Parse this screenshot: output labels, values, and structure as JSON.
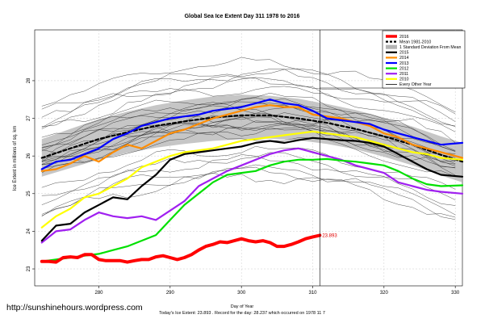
{
  "chart_data": {
    "type": "line",
    "title": "Global Sea Ice Extent Day 311 1978 to 2016",
    "xlabel": "Day of Year",
    "ylabel": "Ice Extent in millions of sq. km",
    "xlim": [
      271,
      331
    ],
    "ylim": [
      22.55,
      29.35
    ],
    "xticks": [
      280,
      290,
      300,
      310,
      320,
      330
    ],
    "yticks": [
      23,
      24,
      25,
      26,
      27,
      28
    ],
    "grid": true,
    "legend_position": "top-right",
    "marker_day": 311,
    "footer_url": "http://sunshinehours.wordpress.com",
    "footer_line1": "Day of Year",
    "footer_line2": "Today's Ice Extent: 23.893  .  Record for the day: 28.237 which occurred on 1978 11 7",
    "annotation": "23.893",
    "legend": [
      {
        "label": "2016",
        "color": "#ff0000",
        "style": "thick"
      },
      {
        "label": "Mean 1981-2010",
        "color": "#000000",
        "style": "dashed"
      },
      {
        "label": "1 Standard Deviation From Mean",
        "color": "#b3b3b3",
        "style": "band"
      },
      {
        "label": "2015",
        "color": "#000000",
        "style": "solid"
      },
      {
        "label": "2014",
        "color": "#ff8c00",
        "style": "solid"
      },
      {
        "label": "2013",
        "color": "#0000ff",
        "style": "solid"
      },
      {
        "label": "2012",
        "color": "#00e000",
        "style": "solid"
      },
      {
        "label": "2011",
        "color": "#a020f0",
        "style": "solid"
      },
      {
        "label": "2010",
        "color": "#ffff00",
        "style": "solid"
      },
      {
        "label": "Every Other Year",
        "color": "#000000",
        "style": "thin"
      }
    ],
    "band": {
      "x": [
        272,
        276,
        280,
        284,
        288,
        292,
        296,
        300,
        304,
        308,
        312,
        316,
        320,
        324,
        328,
        331
      ],
      "upper": [
        26.45,
        26.72,
        26.98,
        27.18,
        27.35,
        27.48,
        27.58,
        27.63,
        27.6,
        27.52,
        27.38,
        27.22,
        27.02,
        26.78,
        26.52,
        26.35
      ],
      "lower": [
        25.45,
        25.68,
        25.9,
        26.08,
        26.22,
        26.32,
        26.4,
        26.45,
        26.46,
        26.42,
        26.32,
        26.18,
        25.98,
        25.75,
        25.48,
        25.3
      ]
    },
    "series": [
      {
        "name": "Mean 1981-2010",
        "color": "#000000",
        "style": "dashed",
        "x": [
          272,
          276,
          280,
          284,
          288,
          292,
          296,
          300,
          304,
          308,
          312,
          316,
          320,
          324,
          328,
          331
        ],
        "y": [
          25.95,
          26.2,
          26.45,
          26.63,
          26.8,
          26.92,
          27.02,
          27.08,
          27.08,
          27.0,
          26.88,
          26.72,
          26.52,
          26.3,
          26.03,
          25.85
        ]
      },
      {
        "name": "2015",
        "color": "#000000",
        "style": "solid",
        "x": [
          272,
          274,
          276,
          278,
          280,
          282,
          284,
          286,
          288,
          290,
          292,
          294,
          296,
          298,
          300,
          302,
          304,
          306,
          308,
          310,
          312,
          314,
          316,
          318,
          320,
          322,
          324,
          326,
          328,
          331
        ],
        "y": [
          23.75,
          24.15,
          24.2,
          24.5,
          24.7,
          24.9,
          24.85,
          25.2,
          25.5,
          25.9,
          26.05,
          26.1,
          26.15,
          26.2,
          26.25,
          26.35,
          26.4,
          26.35,
          26.42,
          26.48,
          26.45,
          26.42,
          26.4,
          26.35,
          26.25,
          26.05,
          25.85,
          25.65,
          25.5,
          25.45
        ]
      },
      {
        "name": "2014",
        "color": "#ff8c00",
        "style": "solid",
        "x": [
          272,
          274,
          276,
          278,
          280,
          282,
          284,
          286,
          288,
          290,
          292,
          294,
          296,
          298,
          300,
          302,
          304,
          306,
          308,
          310,
          312,
          314,
          316,
          318,
          320,
          322,
          324,
          326,
          328,
          331
        ],
        "y": [
          25.6,
          25.65,
          25.8,
          26.0,
          25.85,
          26.1,
          26.3,
          26.2,
          26.4,
          26.6,
          26.7,
          26.85,
          27.0,
          27.1,
          27.2,
          27.3,
          27.35,
          27.3,
          27.3,
          27.1,
          27.05,
          27.0,
          26.9,
          26.8,
          26.6,
          26.5,
          26.3,
          26.2,
          26.1,
          25.95
        ]
      },
      {
        "name": "2013",
        "color": "#0000ff",
        "style": "solid",
        "x": [
          272,
          274,
          276,
          278,
          280,
          282,
          284,
          286,
          288,
          290,
          292,
          294,
          296,
          298,
          300,
          302,
          304,
          306,
          308,
          310,
          312,
          314,
          316,
          318,
          320,
          322,
          324,
          326,
          328,
          331
        ],
        "y": [
          25.65,
          25.85,
          25.9,
          26.05,
          26.2,
          26.45,
          26.6,
          26.8,
          26.9,
          27.0,
          27.05,
          27.1,
          27.2,
          27.25,
          27.3,
          27.4,
          27.5,
          27.4,
          27.35,
          27.2,
          27.0,
          26.95,
          26.9,
          26.85,
          26.7,
          26.6,
          26.5,
          26.4,
          26.3,
          26.35
        ]
      },
      {
        "name": "2012",
        "color": "#00e000",
        "style": "solid",
        "x": [
          272,
          274,
          276,
          278,
          280,
          282,
          284,
          286,
          288,
          290,
          292,
          294,
          296,
          298,
          300,
          302,
          304,
          306,
          308,
          310,
          312,
          314,
          316,
          318,
          320,
          322,
          324,
          326,
          328,
          331
        ],
        "y": [
          23.2,
          23.25,
          23.3,
          23.35,
          23.4,
          23.5,
          23.6,
          23.75,
          23.9,
          24.3,
          24.7,
          25.0,
          25.3,
          25.5,
          25.55,
          25.6,
          25.75,
          25.85,
          25.9,
          25.9,
          25.92,
          25.88,
          25.85,
          25.8,
          25.75,
          25.6,
          25.4,
          25.25,
          25.2,
          25.22
        ]
      },
      {
        "name": "2011",
        "color": "#a020f0",
        "style": "solid",
        "x": [
          272,
          274,
          276,
          278,
          280,
          282,
          284,
          286,
          288,
          290,
          292,
          294,
          296,
          298,
          300,
          302,
          304,
          306,
          308,
          310,
          312,
          314,
          316,
          318,
          320,
          322,
          324,
          326,
          328,
          331
        ],
        "y": [
          23.7,
          24.0,
          24.05,
          24.3,
          24.5,
          24.4,
          24.35,
          24.4,
          24.3,
          24.55,
          24.8,
          25.2,
          25.4,
          25.6,
          25.75,
          25.9,
          26.05,
          26.15,
          26.2,
          26.1,
          26.0,
          25.9,
          25.75,
          25.65,
          25.55,
          25.3,
          25.2,
          25.1,
          25.05,
          25.0
        ]
      },
      {
        "name": "2010",
        "color": "#ffff00",
        "style": "solid",
        "x": [
          272,
          274,
          276,
          278,
          280,
          282,
          284,
          286,
          288,
          290,
          292,
          294,
          296,
          298,
          300,
          302,
          304,
          306,
          308,
          310,
          312,
          314,
          316,
          318,
          320,
          322,
          324,
          326,
          328,
          331
        ],
        "y": [
          24.1,
          24.4,
          24.6,
          24.9,
          25.0,
          25.2,
          25.4,
          25.7,
          25.85,
          26.0,
          26.1,
          26.15,
          26.2,
          26.3,
          26.4,
          26.45,
          26.5,
          26.55,
          26.6,
          26.65,
          26.6,
          26.55,
          26.5,
          26.4,
          26.3,
          26.2,
          26.1,
          26.05,
          25.95,
          25.9
        ]
      },
      {
        "name": "2016",
        "color": "#ff0000",
        "style": "thick",
        "x": [
          272,
          273,
          274,
          275,
          276,
          277,
          278,
          279,
          280,
          281,
          282,
          283,
          284,
          285,
          286,
          287,
          288,
          289,
          290,
          291,
          292,
          293,
          294,
          295,
          296,
          297,
          298,
          299,
          300,
          301,
          302,
          303,
          304,
          305,
          306,
          307,
          308,
          309,
          310,
          311
        ],
        "y": [
          23.2,
          23.2,
          23.18,
          23.3,
          23.32,
          23.3,
          23.38,
          23.38,
          23.25,
          23.22,
          23.22,
          23.22,
          23.18,
          23.22,
          23.25,
          23.25,
          23.32,
          23.35,
          23.3,
          23.25,
          23.3,
          23.38,
          23.5,
          23.6,
          23.65,
          23.72,
          23.7,
          23.75,
          23.8,
          23.75,
          23.72,
          23.75,
          23.7,
          23.6,
          23.6,
          23.65,
          23.72,
          23.8,
          23.85,
          23.893
        ]
      }
    ]
  }
}
